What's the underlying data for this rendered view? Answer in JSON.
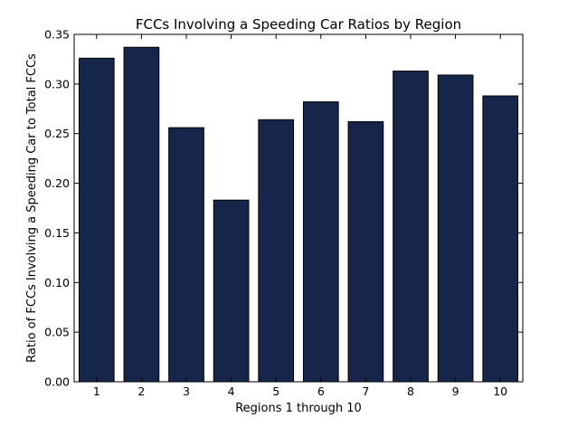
{
  "chart_data": {
    "type": "bar",
    "title": "FCCs Involving a Speeding Car Ratios by Region",
    "xlabel": "Regions 1 through 10",
    "ylabel": "Ratio of FCCs Involving a Speeding Car to Total FCCs",
    "categories": [
      "1",
      "2",
      "3",
      "4",
      "5",
      "6",
      "7",
      "8",
      "9",
      "10"
    ],
    "values": [
      0.326,
      0.337,
      0.256,
      0.183,
      0.264,
      0.282,
      0.262,
      0.313,
      0.309,
      0.288
    ],
    "ylim": [
      0,
      0.35
    ],
    "yticks": [
      "0.00",
      "0.05",
      "0.10",
      "0.15",
      "0.20",
      "0.25",
      "0.30",
      "0.35"
    ],
    "bar_color": "#16264a",
    "edge_color": "#000000",
    "grid": false,
    "legend": "none"
  }
}
